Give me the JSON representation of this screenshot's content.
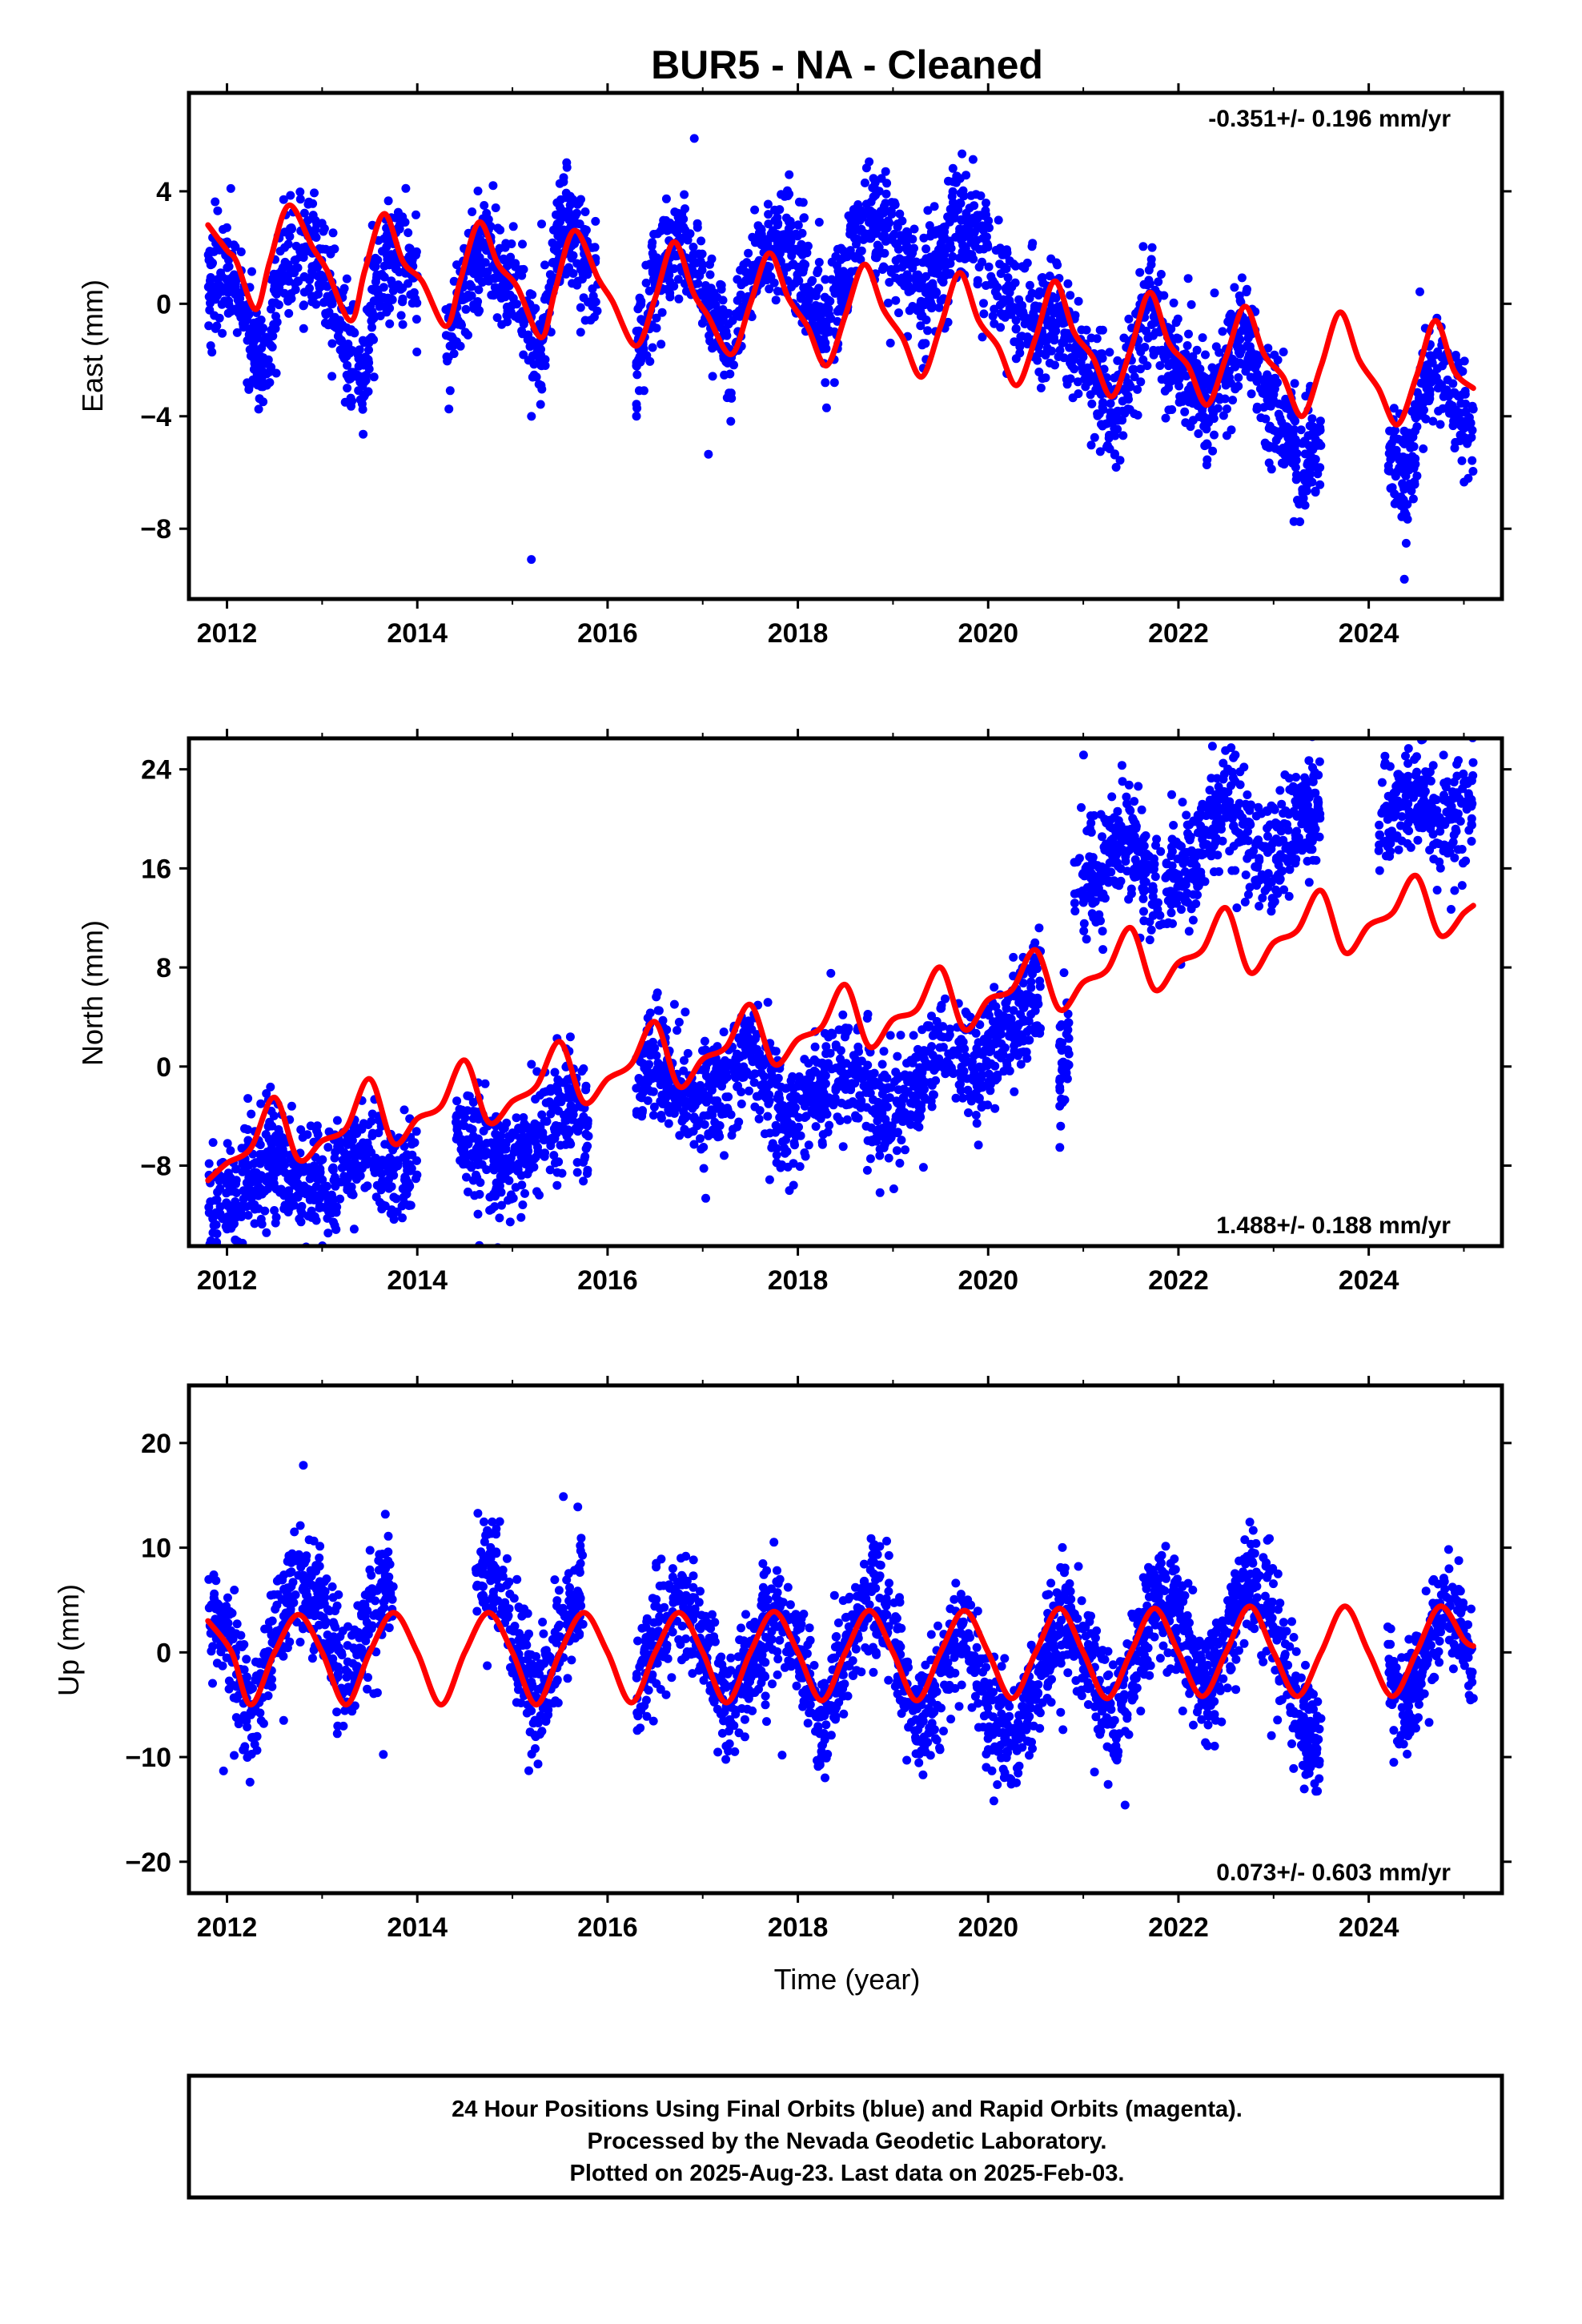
{
  "title": "BUR5  - NA - Cleaned",
  "footer": [
    "24 Hour Positions Using Final Orbits (blue) and Rapid Orbits (magenta).",
    "Processed by the Nevada Geodetic Laboratory.",
    "Plotted on 2025-Aug-23. Last data on 2025-Feb-03."
  ],
  "colors": {
    "points": "#0000ff",
    "model": "#ff0000",
    "frame": "#000000"
  },
  "chart_data": [
    {
      "type": "scatter",
      "ylabel": "East (mm)",
      "xlabel": "",
      "xlim": [
        2011.6,
        2025.4
      ],
      "ylim": [
        -10.5,
        7.5
      ],
      "xticks": [
        2012,
        2014,
        2016,
        2018,
        2020,
        2022,
        2024
      ],
      "yticks": [
        -8,
        -4,
        0,
        4
      ],
      "rate_label": "-0.351+/- 0.196 mm/yr",
      "rate_position": "top-right",
      "series": [
        {
          "kind": "model-line",
          "x": [
            2011.8,
            2012.0,
            2012.1,
            2012.3,
            2012.45,
            2012.65,
            2012.9,
            2013.05,
            2013.3,
            2013.45,
            2013.65,
            2013.85,
            2014.05,
            2014.3,
            2014.45,
            2014.65,
            2014.85,
            2015.05,
            2015.3,
            2015.45,
            2015.65,
            2015.9,
            2016.05,
            2016.3,
            2016.5,
            2016.7,
            2016.9,
            2017.05,
            2017.3,
            2017.5,
            2017.7,
            2017.9,
            2018.1,
            2018.3,
            2018.5,
            2018.7,
            2018.9,
            2019.1,
            2019.3,
            2019.5,
            2019.7,
            2019.9,
            2020.1,
            2020.3,
            2020.5,
            2020.7,
            2020.9,
            2021.1,
            2021.3,
            2021.5,
            2021.7,
            2021.9,
            2022.1,
            2022.3,
            2022.5,
            2022.7,
            2022.9,
            2023.1,
            2023.3,
            2023.5,
            2023.7,
            2023.9,
            2024.1,
            2024.3,
            2024.5,
            2024.7,
            2024.9,
            2025.1
          ],
          "y": [
            2.8,
            1.9,
            1.5,
            -0.2,
            1.5,
            3.5,
            2.0,
            1.2,
            -0.6,
            1.2,
            3.2,
            1.5,
            0.8,
            -0.8,
            0.8,
            2.9,
            1.4,
            0.6,
            -1.2,
            0.5,
            2.6,
            0.9,
            0.1,
            -1.5,
            0.2,
            2.2,
            0.4,
            -0.4,
            -1.8,
            0.0,
            1.8,
            0.2,
            -0.8,
            -2.2,
            -0.4,
            1.4,
            -0.2,
            -1.2,
            -2.6,
            -0.8,
            1.1,
            -0.6,
            -1.5,
            -2.9,
            -1.2,
            0.8,
            -1.0,
            -1.9,
            -3.3,
            -1.6,
            0.4,
            -1.4,
            -2.2,
            -3.6,
            -1.9,
            -0.1,
            -1.8,
            -2.6,
            -4.0,
            -2.2,
            -0.3,
            -2.0,
            -3.0,
            -4.3,
            -2.6,
            -0.6,
            -2.4,
            -3.0
          ]
        },
        {
          "kind": "daily-positions",
          "segments": [
            {
              "x": [
                2011.8,
                2012.0,
                2012.2,
                2012.4,
                2012.6,
                2012.8,
                2013.0,
                2013.2,
                2013.4,
                2013.6,
                2013.8,
                2014.0
              ],
              "y": [
                0.6,
                1.2,
                -0.6,
                -2.6,
                1.4,
                2.1,
                1.3,
                -0.9,
                -2.8,
                1.1,
                1.4,
                1.0
              ]
            },
            {
              "x": [
                2014.3,
                2014.5,
                2014.7,
                2014.9,
                2015.1,
                2015.3,
                2015.5,
                2015.7,
                2015.9
              ],
              "y": [
                -1.2,
                0.8,
                2.3,
                1.0,
                0.3,
                -1.6,
                2.8,
                2.2,
                0.3
              ]
            },
            {
              "x": [
                2016.3,
                2016.5,
                2016.7,
                2016.9,
                2017.1,
                2017.3,
                2017.5,
                2017.7,
                2017.9,
                2018.1,
                2018.3,
                2018.5,
                2018.7,
                2018.9,
                2019.1,
                2019.3,
                2019.5,
                2019.7,
                2019.9,
                2020.1,
                2020.3,
                2020.5,
                2020.7,
                2020.9,
                2021.1,
                2021.3,
                2021.5,
                2021.7,
                2021.9,
                2022.1,
                2022.3,
                2022.5,
                2022.7,
                2022.9,
                2023.1,
                2023.3,
                2023.5
              ],
              "y": [
                -1.8,
                0.8,
                2.2,
                1.3,
                -0.3,
                -1.6,
                1.1,
                2.3,
                1.9,
                0.6,
                -0.9,
                1.2,
                3.4,
                2.6,
                1.7,
                0.2,
                1.3,
                3.2,
                2.2,
                1.1,
                -0.4,
                -0.7,
                0.2,
                -1.4,
                -2.6,
                -4.1,
                -2.4,
                0.2,
                -1.8,
                -2.6,
                -3.9,
                -2.2,
                -0.6,
                -3.2,
                -4.1,
                -6.0,
                -4.8
              ]
            },
            {
              "x": [
                2024.2,
                2024.4,
                2024.6,
                2024.8,
                2025.0,
                2025.1
              ],
              "y": [
                -5.5,
                -6.3,
                -2.2,
                -2.9,
                -3.8,
                -4.6
              ]
            }
          ]
        }
      ]
    },
    {
      "type": "scatter",
      "ylabel": "North (mm)",
      "xlabel": "",
      "xlim": [
        2011.6,
        2025.4
      ],
      "ylim": [
        -14.5,
        26.5
      ],
      "xticks": [
        2012,
        2014,
        2016,
        2018,
        2020,
        2022,
        2024
      ],
      "yticks": [
        -8,
        0,
        8,
        16,
        24
      ],
      "rate_label": "1.488+/- 0.188 mm/yr",
      "rate_position": "bottom-right",
      "series": [
        {
          "kind": "model-line",
          "x": [
            2011.8,
            2012.0,
            2012.25,
            2012.5,
            2012.75,
            2013.0,
            2013.25,
            2013.5,
            2013.75,
            2014.0,
            2014.25,
            2014.5,
            2014.75,
            2015.0,
            2015.25,
            2015.5,
            2015.75,
            2016.0,
            2016.25,
            2016.5,
            2016.75,
            2017.0,
            2017.25,
            2017.5,
            2017.75,
            2018.0,
            2018.25,
            2018.5,
            2018.75,
            2019.0,
            2019.25,
            2019.5,
            2019.75,
            2020.0,
            2020.25,
            2020.5,
            2020.75,
            2021.0,
            2021.25,
            2021.5,
            2021.75,
            2022.0,
            2022.25,
            2022.5,
            2022.75,
            2023.0,
            2023.25,
            2023.5,
            2023.75,
            2024.0,
            2024.25,
            2024.5,
            2024.75,
            2025.0,
            2025.1
          ],
          "y": [
            -9.2,
            -7.8,
            -6.6,
            -2.5,
            -7.5,
            -6.0,
            -5.0,
            -1.0,
            -6.2,
            -4.2,
            -3.2,
            0.5,
            -4.5,
            -2.8,
            -1.6,
            2.0,
            -2.9,
            -1.0,
            0.2,
            3.6,
            -1.6,
            0.6,
            1.6,
            5.0,
            0.2,
            2.2,
            3.2,
            6.6,
            1.6,
            3.8,
            4.6,
            8.0,
            3.0,
            5.4,
            6.2,
            9.4,
            4.6,
            6.8,
            7.8,
            11.2,
            6.2,
            8.4,
            9.4,
            12.8,
            7.6,
            10.0,
            11.0,
            14.2,
            9.2,
            11.4,
            12.4,
            15.4,
            10.6,
            12.4,
            13.0
          ]
        },
        {
          "kind": "daily-positions",
          "segments": [
            {
              "x": [
                2011.8,
                2012.0,
                2012.25,
                2012.5,
                2012.75,
                2013.0,
                2013.25,
                2013.5,
                2013.75,
                2014.0
              ],
              "y": [
                -11.6,
                -10.9,
                -9.4,
                -6.8,
                -9.7,
                -9.5,
                -8.4,
                -6.5,
                -7.9,
                -8.0
              ]
            },
            {
              "x": [
                2014.4,
                2014.6,
                2014.8,
                2015.0,
                2015.2,
                2015.4,
                2015.6,
                2015.8
              ],
              "y": [
                -5.6,
                -6.2,
                -8.0,
                -7.2,
                -6.4,
                -4.7,
                -3.6,
                -4.9
              ]
            },
            {
              "x": [
                2016.3,
                2016.5,
                2016.7,
                2016.9,
                2017.1,
                2017.3,
                2017.5,
                2017.7,
                2017.9,
                2018.1,
                2018.3,
                2018.5,
                2018.7,
                2018.9,
                2019.1,
                2019.3,
                2019.5,
                2019.7,
                2019.9,
                2020.1,
                2020.3,
                2020.55
              ],
              "y": [
                -0.6,
                1.4,
                -2.6,
                -3.6,
                -2.2,
                -1.5,
                1.6,
                -2.4,
                -4.4,
                -2.6,
                -1.6,
                -0.4,
                -2.0,
                -4.6,
                -3.2,
                -1.0,
                2.6,
                -0.2,
                -1.6,
                1.8,
                4.2,
                6.6
              ]
            },
            {
              "x": [
                2020.75,
                2020.85
              ],
              "y": [
                -1.0,
                1.0
              ]
            },
            {
              "x": [
                2020.9,
                2021.1,
                2021.3,
                2021.5,
                2021.7,
                2021.9,
                2022.1,
                2022.3,
                2022.5,
                2022.7,
                2022.9,
                2023.1,
                2023.3,
                2023.5
              ],
              "y": [
                14.2,
                14.6,
                17.0,
                18.4,
                15.6,
                14.8,
                16.2,
                18.4,
                21.4,
                19.0,
                16.6,
                17.8,
                19.8,
                21.6
              ]
            },
            {
              "x": [
                2024.1,
                2024.3,
                2024.5,
                2024.7,
                2024.9,
                2025.1
              ],
              "y": [
                19.2,
                21.4,
                22.2,
                20.2,
                19.6,
                21.6
              ]
            }
          ]
        }
      ]
    },
    {
      "type": "scatter",
      "ylabel": "Up (mm)",
      "xlabel": "Time (year)",
      "xlim": [
        2011.6,
        2025.4
      ],
      "ylim": [
        -23,
        25.5
      ],
      "xticks": [
        2012,
        2014,
        2016,
        2018,
        2020,
        2022,
        2024
      ],
      "yticks": [
        -20,
        -10,
        0,
        10,
        20
      ],
      "rate_label": "0.073+/- 0.603 mm/yr",
      "rate_position": "bottom-right",
      "series": [
        {
          "kind": "model-line",
          "x": [
            2011.8,
            2012.05,
            2012.25,
            2012.5,
            2012.75,
            2013.0,
            2013.25,
            2013.5,
            2013.75,
            2014.0,
            2014.25,
            2014.5,
            2014.75,
            2015.0,
            2015.25,
            2015.5,
            2015.75,
            2016.0,
            2016.25,
            2016.5,
            2016.75,
            2017.0,
            2017.25,
            2017.5,
            2017.75,
            2018.0,
            2018.25,
            2018.5,
            2018.75,
            2019.0,
            2019.25,
            2019.5,
            2019.75,
            2020.0,
            2020.25,
            2020.5,
            2020.75,
            2021.0,
            2021.25,
            2021.5,
            2021.75,
            2022.0,
            2022.25,
            2022.5,
            2022.75,
            2023.0,
            2023.25,
            2023.5,
            2023.75,
            2024.0,
            2024.25,
            2024.5,
            2024.75,
            2025.0,
            2025.1
          ],
          "y": [
            3.0,
            0.0,
            -5.0,
            0.0,
            3.6,
            0.0,
            -5.0,
            0.0,
            3.8,
            0.0,
            -5.0,
            0.0,
            3.8,
            0.0,
            -5.0,
            0.0,
            3.8,
            0.0,
            -4.8,
            0.0,
            3.8,
            0.0,
            -4.8,
            0.0,
            3.9,
            0.0,
            -4.6,
            0.0,
            4.0,
            0.0,
            -4.6,
            0.0,
            4.0,
            0.0,
            -4.4,
            0.0,
            4.2,
            0.0,
            -4.4,
            0.0,
            4.2,
            0.0,
            -4.2,
            0.0,
            4.4,
            0.0,
            -4.2,
            0.0,
            4.4,
            0.0,
            -4.2,
            0.0,
            4.4,
            1.2,
            0.6
          ]
        },
        {
          "kind": "daily-positions",
          "segments": [
            {
              "x": [
                2011.8,
                2012.0,
                2012.25,
                2012.5,
                2012.75,
                2013.0,
                2013.25,
                2013.5,
                2013.75
              ],
              "y": [
                5.0,
                2.0,
                -6.0,
                1.0,
                8.0,
                4.0,
                -3.0,
                3.0,
                7.0
              ]
            },
            {
              "x": [
                2014.6,
                2014.8,
                2015.0,
                2015.25,
                2015.5,
                2015.75
              ],
              "y": [
                7.0,
                8.0,
                2.0,
                -4.0,
                1.0,
                6.0
              ]
            },
            {
              "x": [
                2016.3,
                2016.5,
                2016.75,
                2017.0,
                2017.25,
                2017.5,
                2017.75,
                2018.0,
                2018.25,
                2018.5,
                2018.75,
                2019.0,
                2019.25,
                2019.5,
                2019.75,
                2020.0,
                2020.25,
                2020.5,
                2020.75,
                2021.0,
                2021.25,
                2021.5,
                2021.75,
                2022.0,
                2022.25,
                2022.5,
                2022.75,
                2023.0,
                2023.25,
                2023.5
              ],
              "y": [
                -4.0,
                2.0,
                5.0,
                1.0,
                -6.0,
                -1.0,
                4.0,
                1.0,
                -8.0,
                0.0,
                6.0,
                2.0,
                -7.0,
                -3.0,
                3.0,
                -6.0,
                -8.0,
                -4.0,
                4.0,
                1.0,
                -6.0,
                -2.0,
                6.0,
                3.0,
                -4.0,
                1.0,
                8.0,
                4.0,
                -6.0,
                -9.0
              ]
            },
            {
              "x": [
                2024.2,
                2024.4,
                2024.6,
                2024.8,
                2025.0,
                2025.1
              ],
              "y": [
                -2.0,
                -6.0,
                0.0,
                5.0,
                2.0,
                -2.0
              ]
            }
          ]
        }
      ]
    }
  ]
}
